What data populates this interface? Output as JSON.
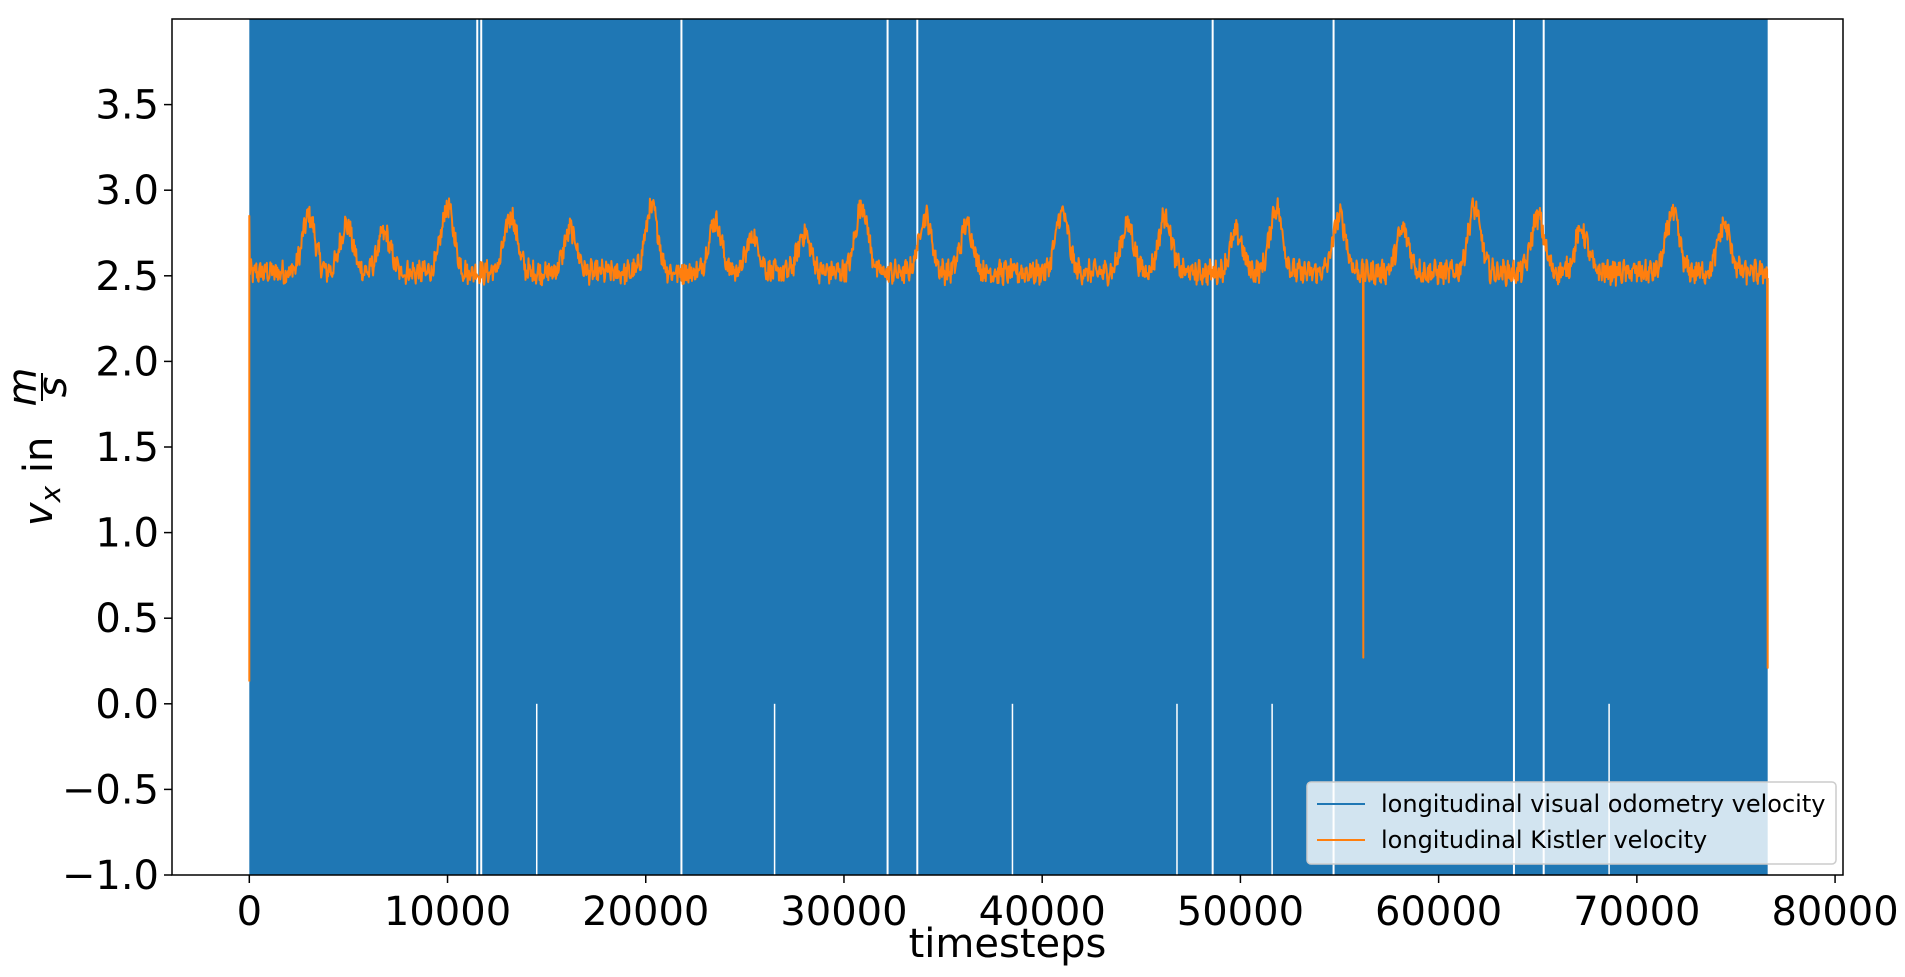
{
  "chart_data": {
    "type": "line",
    "title": "",
    "xlabel": "timesteps",
    "ylabel": {
      "base": "v",
      "subscript": "x",
      "word": " in ",
      "numerator": "m",
      "denominator": "s"
    },
    "xlim": [
      -3900,
      80400
    ],
    "ylim": [
      -1.0,
      4.0
    ],
    "xticks": [
      0,
      10000,
      20000,
      30000,
      40000,
      50000,
      60000,
      70000,
      80000
    ],
    "xtick_labels": [
      "0",
      "10000",
      "20000",
      "30000",
      "40000",
      "50000",
      "60000",
      "70000",
      "80000"
    ],
    "yticks": [
      -1.0,
      -0.5,
      0.0,
      0.5,
      1.0,
      1.5,
      2.0,
      2.5,
      3.0,
      3.5
    ],
    "ytick_labels": [
      "−1.0",
      "−0.5",
      "0.0",
      "0.5",
      "1.0",
      "1.5",
      "2.0",
      "2.5",
      "3.0",
      "3.5"
    ],
    "grid": false,
    "legend_position": "lower-right",
    "series": [
      {
        "name": "longitudinal visual odometry velocity",
        "color": "#1f77b4",
        "x_range": [
          0,
          76600
        ],
        "dense_range": [
          -1.0,
          4.0
        ],
        "gaps_full": [
          11500,
          11700,
          21800,
          32200,
          33700,
          48600,
          54700,
          63800,
          65300
        ],
        "gaps_lower": [
          14500,
          26500,
          38500,
          46800,
          51600,
          68600
        ]
      },
      {
        "name": "longitudinal Kistler velocity",
        "color": "#ff7f0e",
        "x_range": [
          0,
          76600
        ],
        "baseline": 2.52,
        "noise": 0.06,
        "peaks": [
          {
            "x": 3000,
            "y": 2.9
          },
          {
            "x": 4900,
            "y": 2.85
          },
          {
            "x": 6800,
            "y": 2.8
          },
          {
            "x": 10000,
            "y": 2.95
          },
          {
            "x": 13200,
            "y": 2.9
          },
          {
            "x": 16200,
            "y": 2.82
          },
          {
            "x": 20300,
            "y": 2.95
          },
          {
            "x": 23500,
            "y": 2.87
          },
          {
            "x": 25400,
            "y": 2.78
          },
          {
            "x": 28000,
            "y": 2.8
          },
          {
            "x": 30900,
            "y": 2.96
          },
          {
            "x": 34100,
            "y": 2.9
          },
          {
            "x": 36200,
            "y": 2.85
          },
          {
            "x": 41000,
            "y": 2.92
          },
          {
            "x": 44300,
            "y": 2.85
          },
          {
            "x": 46200,
            "y": 2.9
          },
          {
            "x": 49800,
            "y": 2.8
          },
          {
            "x": 51800,
            "y": 2.95
          },
          {
            "x": 55000,
            "y": 2.9
          },
          {
            "x": 58200,
            "y": 2.82
          },
          {
            "x": 61800,
            "y": 2.95
          },
          {
            "x": 65000,
            "y": 2.9
          },
          {
            "x": 67200,
            "y": 2.82
          },
          {
            "x": 71800,
            "y": 2.92
          },
          {
            "x": 74400,
            "y": 2.85
          }
        ],
        "spikes": [
          {
            "x": 0,
            "y": 0.13
          },
          {
            "x": 56200,
            "y": 0.27
          },
          {
            "x": 76600,
            "y": 0.21
          }
        ]
      }
    ]
  }
}
